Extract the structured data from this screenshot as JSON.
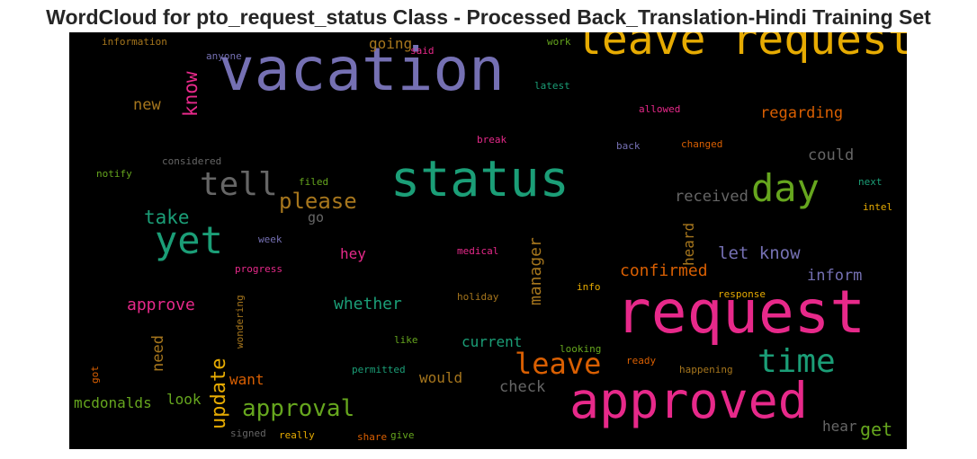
{
  "chart_data": {
    "type": "wordcloud",
    "title": "WordCloud for pto_request_status Class - Processed Back_Translation-Hindi Training Set",
    "background": "#000000",
    "words": [
      {
        "text": "vacation",
        "weight": 66,
        "color": "#7570b3",
        "orientation": "horizontal"
      },
      {
        "text": "request",
        "weight": 66,
        "color": "#e7298a",
        "orientation": "horizontal"
      },
      {
        "text": "approved",
        "weight": 55,
        "color": "#e7298a",
        "orientation": "horizontal"
      },
      {
        "text": "status",
        "weight": 55,
        "color": "#1b9e77",
        "orientation": "horizontal"
      },
      {
        "text": "leave request",
        "weight": 48,
        "color": "#e6ab02",
        "orientation": "horizontal"
      },
      {
        "text": "day",
        "weight": 42,
        "color": "#66a61e",
        "orientation": "horizontal"
      },
      {
        "text": "yet",
        "weight": 42,
        "color": "#1b9e77",
        "orientation": "horizontal"
      },
      {
        "text": "time",
        "weight": 36,
        "color": "#1b9e77",
        "orientation": "horizontal"
      },
      {
        "text": "tell",
        "weight": 36,
        "color": "#666666",
        "orientation": "horizontal"
      },
      {
        "text": "leave",
        "weight": 32,
        "color": "#d95f02",
        "orientation": "horizontal"
      },
      {
        "text": "approval",
        "weight": 26,
        "color": "#66a61e",
        "orientation": "horizontal"
      },
      {
        "text": "please",
        "weight": 24,
        "color": "#a6761d",
        "orientation": "horizontal"
      },
      {
        "text": "update",
        "weight": 22,
        "color": "#e6ab02",
        "orientation": "vertical"
      },
      {
        "text": "take",
        "weight": 21,
        "color": "#1b9e77",
        "orientation": "horizontal"
      },
      {
        "text": "know",
        "weight": 21,
        "color": "#e7298a",
        "orientation": "vertical"
      },
      {
        "text": "let know",
        "weight": 19,
        "color": "#7570b3",
        "orientation": "horizontal"
      },
      {
        "text": "manager",
        "weight": 18,
        "color": "#a6761d",
        "orientation": "vertical"
      },
      {
        "text": "confirmed",
        "weight": 18,
        "color": "#d95f02",
        "orientation": "horizontal"
      },
      {
        "text": "whether",
        "weight": 18,
        "color": "#1b9e77",
        "orientation": "horizontal"
      },
      {
        "text": "approve",
        "weight": 18,
        "color": "#e7298a",
        "orientation": "horizontal"
      },
      {
        "text": "get",
        "weight": 20,
        "color": "#66a61e",
        "orientation": "horizontal"
      },
      {
        "text": "regarding",
        "weight": 17,
        "color": "#d95f02",
        "orientation": "horizontal"
      },
      {
        "text": "could",
        "weight": 17,
        "color": "#666666",
        "orientation": "horizontal"
      },
      {
        "text": "received",
        "weight": 17,
        "color": "#666666",
        "orientation": "horizontal"
      },
      {
        "text": "inform",
        "weight": 17,
        "color": "#7570b3",
        "orientation": "horizontal"
      },
      {
        "text": "check",
        "weight": 17,
        "color": "#666666",
        "orientation": "horizontal"
      },
      {
        "text": "new",
        "weight": 17,
        "color": "#a6761d",
        "orientation": "horizontal"
      },
      {
        "text": "need",
        "weight": 17,
        "color": "#a6761d",
        "orientation": "vertical"
      },
      {
        "text": "going",
        "weight": 16,
        "color": "#a6761d",
        "orientation": "horizontal"
      },
      {
        "text": "heard",
        "weight": 16,
        "color": "#a6761d",
        "orientation": "vertical"
      },
      {
        "text": "current",
        "weight": 16,
        "color": "#1b9e77",
        "orientation": "horizontal"
      },
      {
        "text": "would",
        "weight": 16,
        "color": "#a6761d",
        "orientation": "horizontal"
      },
      {
        "text": "look",
        "weight": 16,
        "color": "#66a61e",
        "orientation": "horizontal"
      },
      {
        "text": "want",
        "weight": 16,
        "color": "#d95f02",
        "orientation": "horizontal"
      },
      {
        "text": "mcdonalds",
        "weight": 16,
        "color": "#66a61e",
        "orientation": "horizontal"
      },
      {
        "text": "hey",
        "weight": 16,
        "color": "#e7298a",
        "orientation": "horizontal"
      },
      {
        "text": "hear",
        "weight": 16,
        "color": "#666666",
        "orientation": "horizontal"
      },
      {
        "text": "go",
        "weight": 15,
        "color": "#666666",
        "orientation": "horizontal"
      },
      {
        "text": "information",
        "weight": 11,
        "color": "#a6761d",
        "orientation": "horizontal"
      },
      {
        "text": "anyone",
        "weight": 11,
        "color": "#7570b3",
        "orientation": "horizontal"
      },
      {
        "text": "said",
        "weight": 11,
        "color": "#e7298a",
        "orientation": "horizontal"
      },
      {
        "text": "work",
        "weight": 11,
        "color": "#66a61e",
        "orientation": "horizontal"
      },
      {
        "text": "latest",
        "weight": 11,
        "color": "#1b9e77",
        "orientation": "horizontal"
      },
      {
        "text": "allowed",
        "weight": 11,
        "color": "#e7298a",
        "orientation": "horizontal"
      },
      {
        "text": "break",
        "weight": 11,
        "color": "#e7298a",
        "orientation": "horizontal"
      },
      {
        "text": "back",
        "weight": 11,
        "color": "#7570b3",
        "orientation": "horizontal"
      },
      {
        "text": "changed",
        "weight": 11,
        "color": "#d95f02",
        "orientation": "horizontal"
      },
      {
        "text": "considered",
        "weight": 11,
        "color": "#666666",
        "orientation": "horizontal"
      },
      {
        "text": "notify",
        "weight": 11,
        "color": "#66a61e",
        "orientation": "horizontal"
      },
      {
        "text": "filed",
        "weight": 11,
        "color": "#66a61e",
        "orientation": "horizontal"
      },
      {
        "text": "next",
        "weight": 11,
        "color": "#1b9e77",
        "orientation": "horizontal"
      },
      {
        "text": "intel",
        "weight": 11,
        "color": "#e6ab02",
        "orientation": "horizontal"
      },
      {
        "text": "week",
        "weight": 11,
        "color": "#7570b3",
        "orientation": "horizontal"
      },
      {
        "text": "medical",
        "weight": 11,
        "color": "#e7298a",
        "orientation": "horizontal"
      },
      {
        "text": "progress",
        "weight": 11,
        "color": "#e7298a",
        "orientation": "horizontal"
      },
      {
        "text": "info",
        "weight": 11,
        "color": "#e6ab02",
        "orientation": "horizontal"
      },
      {
        "text": "response",
        "weight": 11,
        "color": "#e6ab02",
        "orientation": "horizontal"
      },
      {
        "text": "wondering",
        "weight": 11,
        "color": "#a6761d",
        "orientation": "vertical"
      },
      {
        "text": "holiday",
        "weight": 11,
        "color": "#a6761d",
        "orientation": "horizontal"
      },
      {
        "text": "like",
        "weight": 11,
        "color": "#66a61e",
        "orientation": "horizontal"
      },
      {
        "text": "looking",
        "weight": 11,
        "color": "#66a61e",
        "orientation": "horizontal"
      },
      {
        "text": "ready",
        "weight": 11,
        "color": "#d95f02",
        "orientation": "horizontal"
      },
      {
        "text": "got",
        "weight": 11,
        "color": "#d95f02",
        "orientation": "vertical"
      },
      {
        "text": "permitted",
        "weight": 11,
        "color": "#1b9e77",
        "orientation": "horizontal"
      },
      {
        "text": "happening",
        "weight": 11,
        "color": "#a6761d",
        "orientation": "horizontal"
      },
      {
        "text": "signed",
        "weight": 11,
        "color": "#666666",
        "orientation": "horizontal"
      },
      {
        "text": "really",
        "weight": 11,
        "color": "#e6ab02",
        "orientation": "horizontal"
      },
      {
        "text": "share",
        "weight": 11,
        "color": "#d95f02",
        "orientation": "horizontal"
      },
      {
        "text": "give",
        "weight": 11,
        "color": "#66a61e",
        "orientation": "horizontal"
      }
    ]
  }
}
